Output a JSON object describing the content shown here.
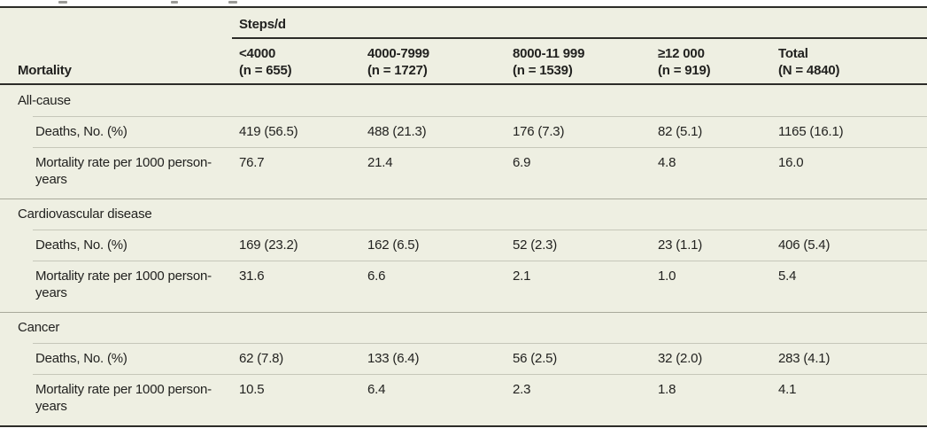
{
  "table": {
    "spanner_label": "Steps/d",
    "stub_header": "Mortality",
    "columns": [
      {
        "label": "<4000",
        "sub": "(n = 655)"
      },
      {
        "label": "4000-7999",
        "sub": "(n = 1727)"
      },
      {
        "label": "8000-11 999",
        "sub": "(n = 1539)"
      },
      {
        "label": "≥12 000",
        "sub": "(n = 919)"
      },
      {
        "label": "Total",
        "sub": "(N = 4840)"
      }
    ],
    "sections": [
      {
        "name": "All-cause",
        "rows": [
          {
            "label": "Deaths, No. (%)",
            "values": [
              "419 (56.5)",
              "488 (21.3)",
              "176 (7.3)",
              "82 (5.1)",
              "1165 (16.1)"
            ]
          },
          {
            "label": "Mortality rate per 1000 person-years",
            "values": [
              "76.7",
              "21.4",
              "6.9",
              "4.8",
              "16.0"
            ]
          }
        ]
      },
      {
        "name": "Cardiovascular disease",
        "rows": [
          {
            "label": "Deaths, No. (%)",
            "values": [
              "169 (23.2)",
              "162 (6.5)",
              "52 (2.3)",
              "23 (1.1)",
              "406 (5.4)"
            ]
          },
          {
            "label": "Mortality rate per 1000 person-years",
            "values": [
              "31.6",
              "6.6",
              "2.1",
              "1.0",
              "5.4"
            ]
          }
        ]
      },
      {
        "name": "Cancer",
        "rows": [
          {
            "label": "Deaths, No. (%)",
            "values": [
              "62 (7.8)",
              "133 (6.4)",
              "56 (2.5)",
              "32 (2.0)",
              "283 (4.1)"
            ]
          },
          {
            "label": "Mortality rate per 1000 person-years",
            "values": [
              "10.5",
              "6.4",
              "2.3",
              "1.8",
              "4.1"
            ]
          }
        ]
      }
    ]
  },
  "colors": {
    "page_bg": "#ffffff",
    "table_bg": "#eeefe2",
    "rule_dark": "#2c2c28",
    "divider_light": "#c6c7b9",
    "divider_medium": "#a8a99b",
    "text": "#222220"
  }
}
